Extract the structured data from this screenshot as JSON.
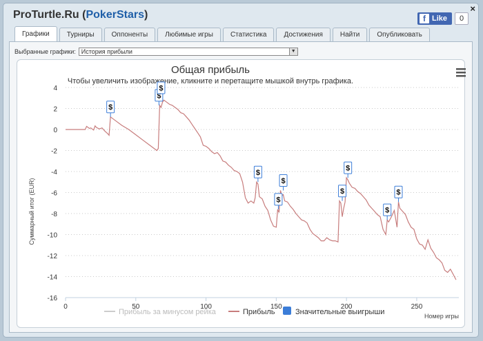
{
  "header": {
    "site": "ProTurtle.Ru",
    "room_open": "(",
    "room": "PokerStars",
    "room_close": ")"
  },
  "facebook": {
    "like_label": "Like",
    "count": "0",
    "close": "×"
  },
  "tabs": [
    {
      "label": "Графики",
      "active": true
    },
    {
      "label": "Турниры"
    },
    {
      "label": "Оппоненты"
    },
    {
      "label": "Любимые игры"
    },
    {
      "label": "Статистика"
    },
    {
      "label": "Достижения"
    },
    {
      "label": "Найти"
    },
    {
      "label": "Опубликовать"
    }
  ],
  "selector": {
    "label": "Выбранные графики:",
    "value": "История прибыли"
  },
  "chart_data": {
    "type": "line",
    "title": "Общая прибыль",
    "subtitle": "Чтобы увеличить изображение, кликните и перетащите мышкой внутрь графика.",
    "ylabel": "Суммарный итог (EUR)",
    "xlabel": "Номер игры",
    "xlim": [
      0,
      280
    ],
    "ylim": [
      -16,
      4
    ],
    "xticks": [
      "0",
      "50",
      "100",
      "150",
      "200",
      "250"
    ],
    "yticks": [
      "4",
      "2",
      "0",
      "-2",
      "-4",
      "-6",
      "-8",
      "-10",
      "-12",
      "-14",
      "-16"
    ],
    "grid": true,
    "legend": [
      {
        "name": "Прибыль за минусом рейка",
        "color": "#cccccc",
        "enabled": false
      },
      {
        "name": "Прибыль",
        "color": "#c77c7c"
      },
      {
        "name": "Значительные выигрыши",
        "color": "#3b7dd8"
      }
    ],
    "series": [
      {
        "name": "Прибыль",
        "color": "#c77c7c",
        "x": [
          0,
          5,
          10,
          14,
          15,
          17,
          18,
          20,
          21,
          22,
          24,
          26,
          28,
          30,
          31,
          32,
          36,
          40,
          45,
          50,
          55,
          60,
          65,
          66,
          67,
          68,
          69,
          70,
          72,
          74,
          76,
          78,
          80,
          82,
          84,
          86,
          88,
          90,
          92,
          94,
          96,
          98,
          100,
          102,
          104,
          106,
          108,
          110,
          112,
          114,
          116,
          118,
          120,
          122,
          124,
          126,
          128,
          130,
          132,
          134,
          135,
          136,
          137,
          138,
          140,
          142,
          144,
          146,
          148,
          150,
          151,
          152,
          153,
          154,
          155,
          156,
          158,
          160,
          162,
          164,
          166,
          168,
          170,
          172,
          174,
          176,
          178,
          180,
          182,
          184,
          186,
          188,
          190,
          192,
          194,
          195,
          196,
          197,
          198,
          199,
          200,
          201,
          202,
          204,
          206,
          208,
          210,
          212,
          214,
          216,
          218,
          220,
          222,
          224,
          226,
          228,
          229,
          230,
          232,
          234,
          236,
          237,
          238,
          240,
          242,
          244,
          246,
          248,
          250,
          252,
          254,
          256,
          258,
          260,
          262,
          264,
          266,
          268,
          270,
          272,
          274,
          276,
          278
        ],
        "y": [
          0,
          0,
          0,
          0,
          0.3,
          0.1,
          0.15,
          -0.05,
          0.35,
          0.2,
          0.05,
          0.15,
          -0.15,
          -0.4,
          -0.55,
          1.2,
          0.8,
          0.4,
          0,
          -0.5,
          -1,
          -1.5,
          -2,
          -1.8,
          2.3,
          2.1,
          2.6,
          2.8,
          2.6,
          2.4,
          2.3,
          2.1,
          1.9,
          1.6,
          1.5,
          1.2,
          0.9,
          0.5,
          0.1,
          -0.3,
          -0.7,
          -1.5,
          -1.6,
          -1.8,
          -2.1,
          -2.3,
          -2.2,
          -2.5,
          -3,
          -3.1,
          -3.4,
          -3.6,
          -3.9,
          -4,
          -4.2,
          -5,
          -6.5,
          -7,
          -6.8,
          -7,
          -6.5,
          -5,
          -5.2,
          -6.4,
          -6.6,
          -7.3,
          -7.7,
          -8.6,
          -9.2,
          -9.3,
          -7.6,
          -7.9,
          -5.8,
          -6.3,
          -6.2,
          -6.8,
          -6.9,
          -7.3,
          -7.6,
          -8,
          -8.3,
          -8.6,
          -8.7,
          -8.9,
          -9.5,
          -9.9,
          -10.1,
          -10.3,
          -10.6,
          -10.6,
          -10.3,
          -10.5,
          -10.6,
          -10.6,
          -10.7,
          -6.8,
          -7,
          -8.3,
          -7.5,
          -6.9,
          -4.6,
          -4.8,
          -5.1,
          -5.5,
          -5.6,
          -5.9,
          -6.1,
          -6.4,
          -6.7,
          -7.2,
          -7.5,
          -7.8,
          -8.1,
          -8.3,
          -9.5,
          -10,
          -8.6,
          -8.8,
          -8.3,
          -7.7,
          -9.3,
          -6.9,
          -7.5,
          -7.8,
          -8.1,
          -8.8,
          -9.3,
          -9.5,
          -10.4,
          -10.9,
          -11,
          -11.4,
          -10.5,
          -11.3,
          -11.7,
          -12.2,
          -12.4,
          -12.7,
          -13.4,
          -13.6,
          -13.3,
          -13.8,
          -14.3
        ]
      }
    ],
    "markers": [
      {
        "x": 32,
        "y": 1.2,
        "label": "$"
      },
      {
        "x": 66.5,
        "y": 2.3,
        "label": "$"
      },
      {
        "x": 68,
        "y": 3.9,
        "label": "$"
      },
      {
        "x": 137,
        "y": -5,
        "label": "$"
      },
      {
        "x": 151.5,
        "y": -7.6,
        "label": "$"
      },
      {
        "x": 155,
        "y": -5.8,
        "label": "$"
      },
      {
        "x": 197,
        "y": -6.8,
        "label": "$"
      },
      {
        "x": 201,
        "y": -4.6,
        "label": "$"
      },
      {
        "x": 229,
        "y": -8.6,
        "label": "$"
      },
      {
        "x": 237,
        "y": -6.9,
        "label": "$"
      }
    ]
  }
}
